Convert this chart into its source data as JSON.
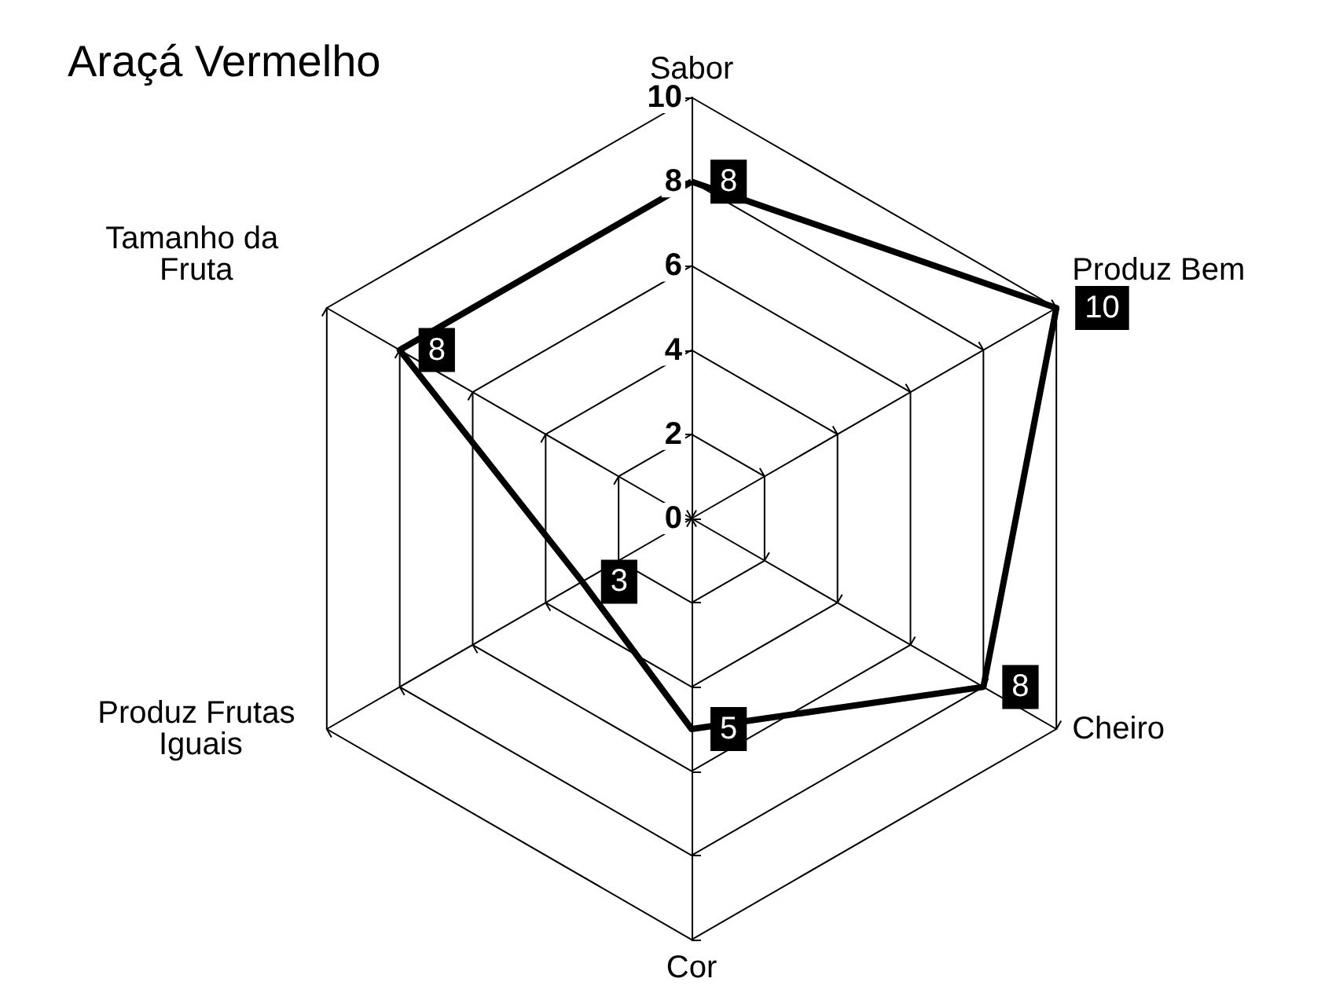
{
  "chart_data": {
    "type": "radar",
    "title": "Araçá Vermelho",
    "categories": [
      "Sabor",
      "Produz Bem",
      "Cheiro",
      "Cor",
      "Produz Frutas Iguais",
      "Tamanho da Fruta"
    ],
    "series": [
      {
        "color": "#000000",
        "values": [
          8,
          10,
          8,
          5,
          3,
          8
        ]
      }
    ],
    "ylim": [
      0,
      10
    ],
    "yticks": [
      0,
      2,
      4,
      6,
      8,
      10
    ],
    "data_labels": true,
    "grid": true,
    "marker": "none",
    "line_style": "solid"
  }
}
